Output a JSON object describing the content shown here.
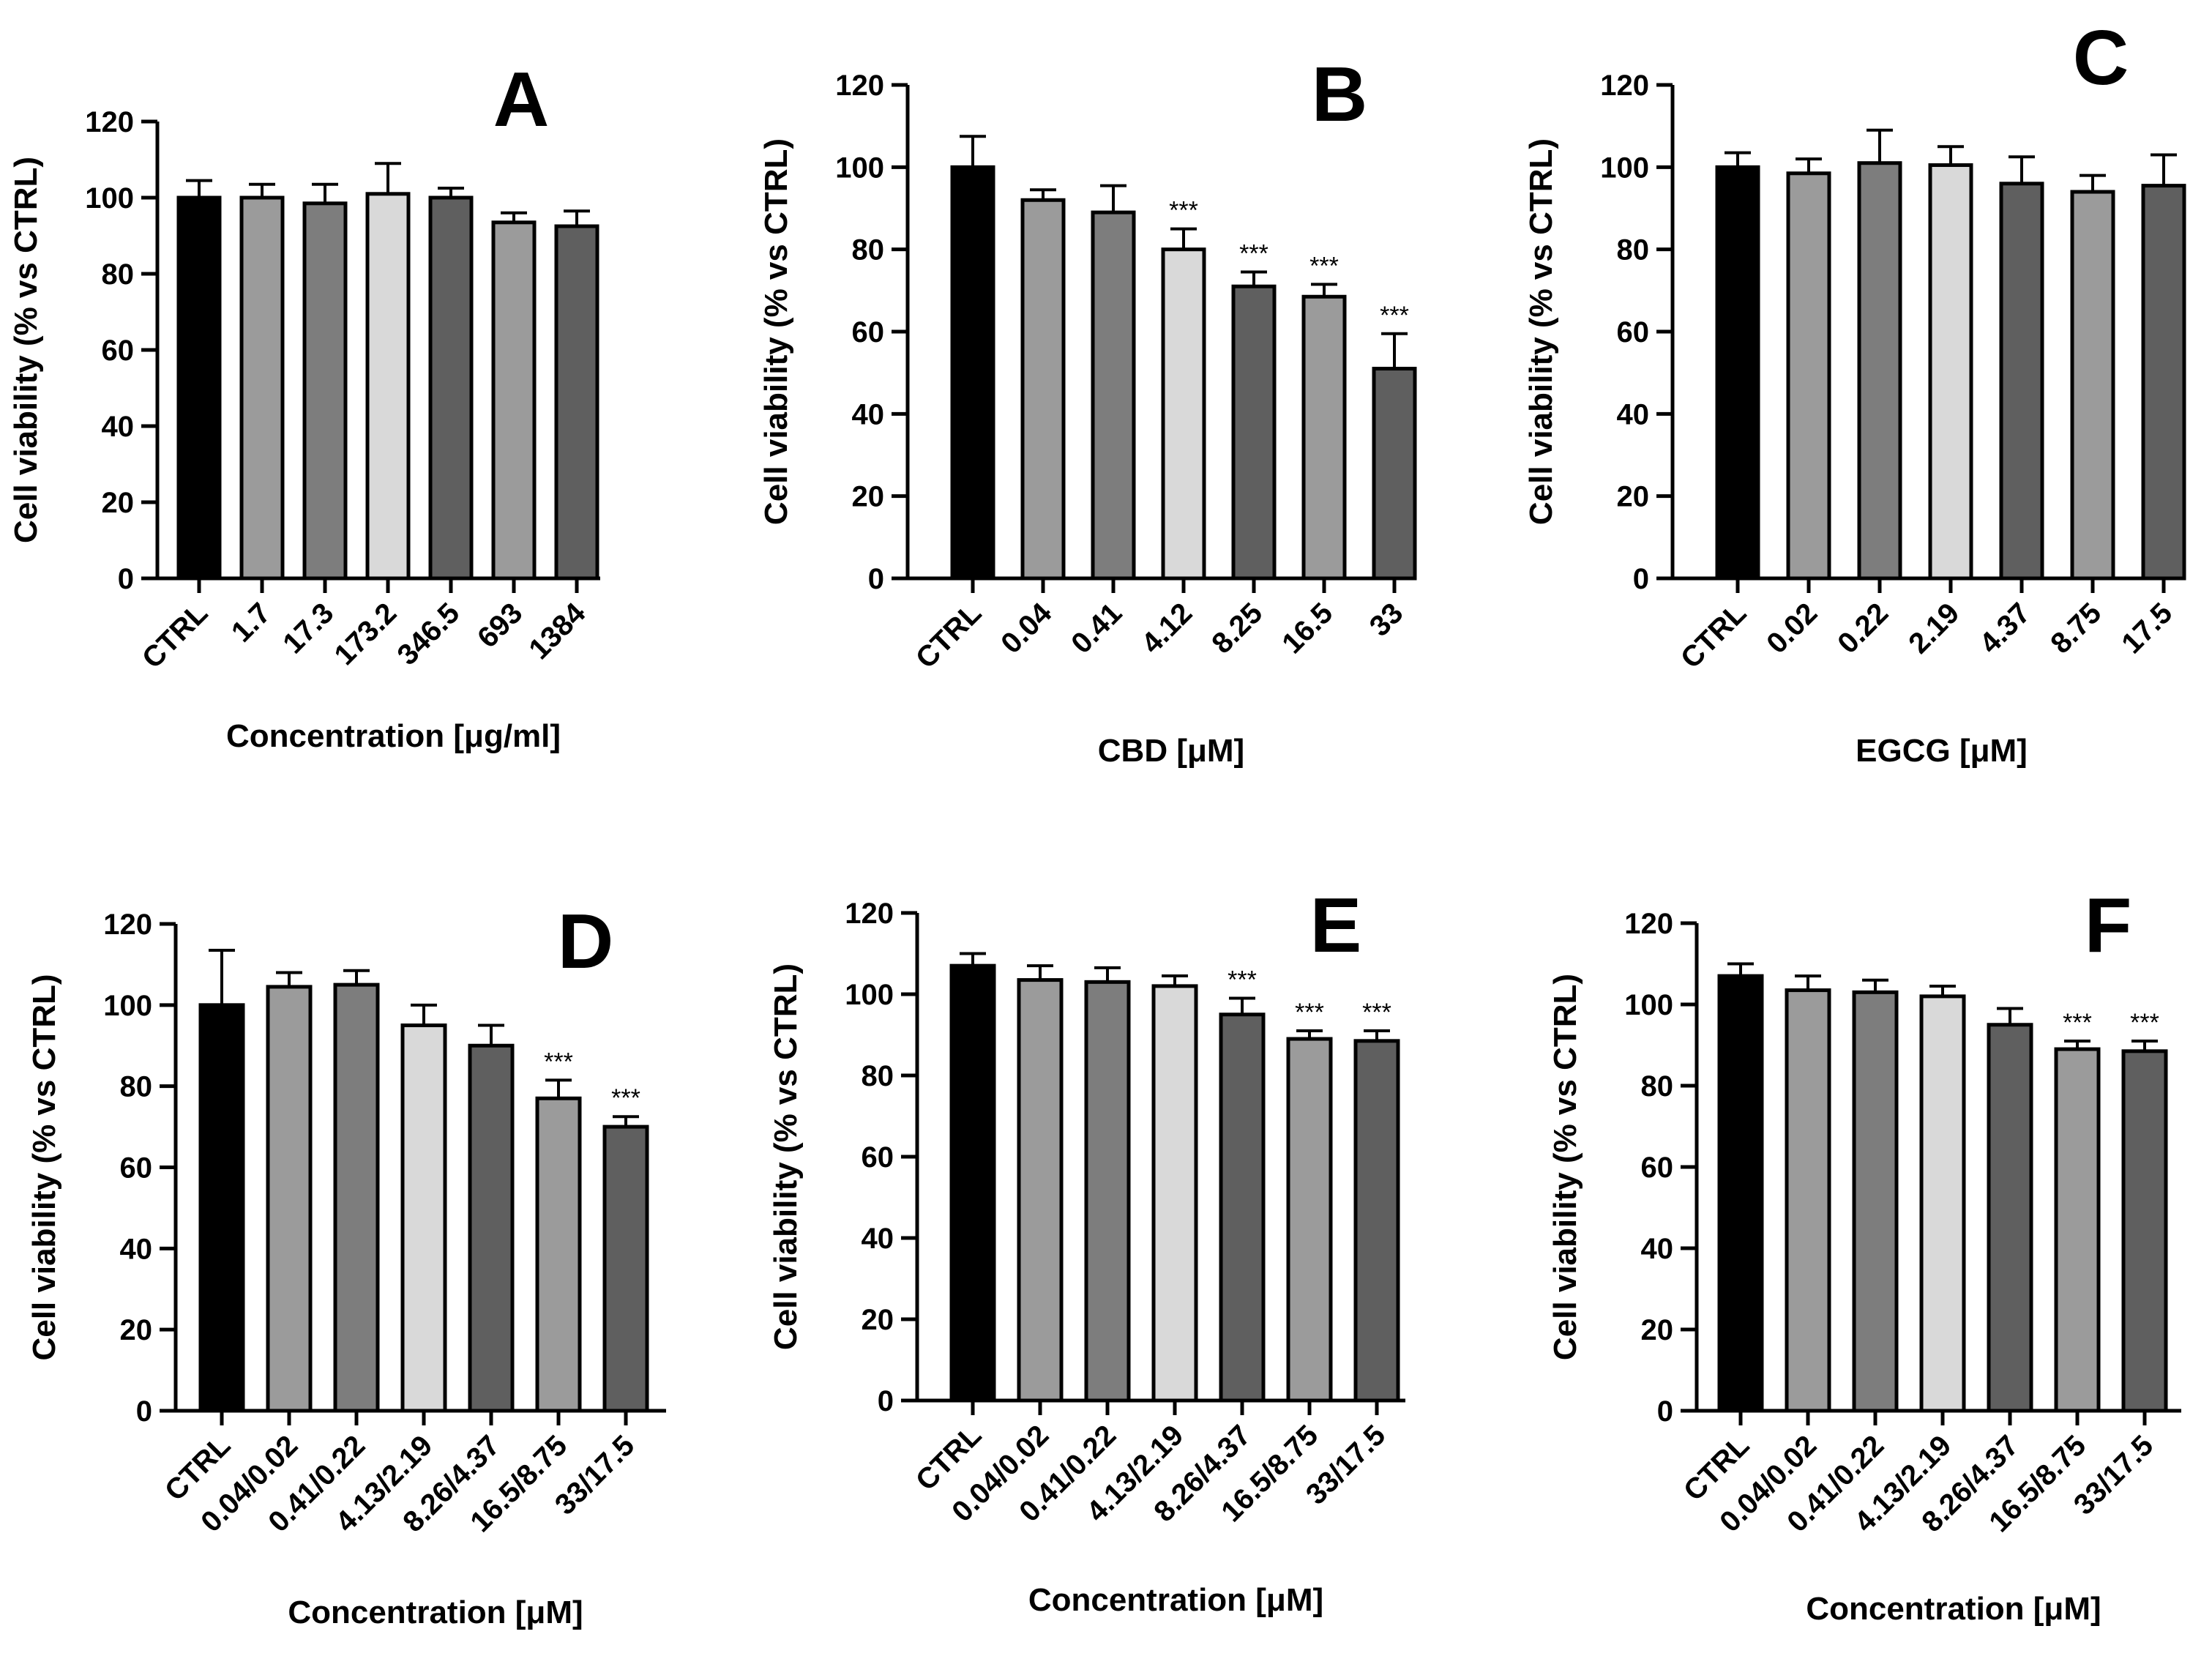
{
  "chart_data": [
    {
      "panel": "A",
      "type": "bar",
      "ylabel": "Cell viability (% vs CTRL)",
      "xlabel": "Concentration [μg/ml]",
      "ylim": [
        0,
        120
      ],
      "yticks": [
        0,
        20,
        40,
        60,
        80,
        100,
        120
      ],
      "categories": [
        "CTRL",
        "1.7",
        "17.3",
        "173.2",
        "346.5",
        "693",
        "1384"
      ],
      "values": [
        100,
        100,
        98.5,
        101,
        100,
        93.5,
        92.5
      ],
      "errors": [
        4.5,
        3.5,
        5,
        8,
        2.5,
        2.5,
        4
      ],
      "significance": [
        "",
        "",
        "",
        "",
        "",
        "",
        ""
      ],
      "colors": [
        "#000000",
        "#9b9b9b",
        "#7d7d7d",
        "#d9d9d9",
        "#5f5f5f",
        "#9b9b9b",
        "#5f5f5f"
      ],
      "grid": false
    },
    {
      "panel": "B",
      "type": "bar",
      "ylabel": "Cell viability (% vs CTRL)",
      "xlabel": "CBD [μM]",
      "ylim": [
        0,
        120
      ],
      "yticks": [
        0,
        20,
        40,
        60,
        80,
        100,
        120
      ],
      "categories": [
        "CTRL",
        "0.04",
        "0.41",
        "4.12",
        "8.25",
        "16.5",
        "33"
      ],
      "values": [
        100,
        92,
        89,
        80,
        71,
        68.5,
        51
      ],
      "errors": [
        7.5,
        2.5,
        6.5,
        5,
        3.5,
        3,
        8.5
      ],
      "significance": [
        "",
        "",
        "",
        "***",
        "***",
        "***",
        "***"
      ],
      "colors": [
        "#000000",
        "#9b9b9b",
        "#7d7d7d",
        "#d9d9d9",
        "#5f5f5f",
        "#9b9b9b",
        "#5f5f5f"
      ],
      "grid": false
    },
    {
      "panel": "C",
      "type": "bar",
      "ylabel": "Cell viability (% vs CTRL)",
      "xlabel": "EGCG [μM]",
      "ylim": [
        0,
        120
      ],
      "yticks": [
        0,
        20,
        40,
        60,
        80,
        100,
        120
      ],
      "categories": [
        "CTRL",
        "0.02",
        "0.22",
        "2.19",
        "4.37",
        "8.75",
        "17.5"
      ],
      "values": [
        100,
        98.5,
        101,
        100.5,
        96,
        94,
        95.5
      ],
      "errors": [
        3.5,
        3.5,
        8,
        4.5,
        6.5,
        4,
        7.5
      ],
      "significance": [
        "",
        "",
        "",
        "",
        "",
        "",
        ""
      ],
      "colors": [
        "#000000",
        "#9b9b9b",
        "#7d7d7d",
        "#d9d9d9",
        "#5f5f5f",
        "#9b9b9b",
        "#5f5f5f"
      ],
      "grid": false
    },
    {
      "panel": "D",
      "type": "bar",
      "ylabel": "Cell viability (% vs CTRL)",
      "xlabel": "Concentration [μM]",
      "ylim": [
        0,
        120
      ],
      "yticks": [
        0,
        20,
        40,
        60,
        80,
        100,
        120
      ],
      "categories": [
        "CTRL",
        "0.04/0.02",
        "0.41/0.22",
        "4.13/2.19",
        "8.26/4.37",
        "16.5/8.75",
        "33/17.5"
      ],
      "values": [
        100,
        104.5,
        105,
        95,
        90,
        77,
        70
      ],
      "errors": [
        13.5,
        3.5,
        3.5,
        5,
        5,
        4.5,
        2.5
      ],
      "significance": [
        "",
        "",
        "",
        "",
        "",
        "***",
        "***"
      ],
      "colors": [
        "#000000",
        "#9b9b9b",
        "#7d7d7d",
        "#d9d9d9",
        "#5f5f5f",
        "#9b9b9b",
        "#5f5f5f"
      ],
      "grid": false
    },
    {
      "panel": "E",
      "type": "bar",
      "ylabel": "Cell viability (% vs CTRL)",
      "xlabel": "Concentration [μM]",
      "ylim": [
        0,
        120
      ],
      "yticks": [
        0,
        20,
        40,
        60,
        80,
        100,
        120
      ],
      "categories": [
        "CTRL",
        "0.04/0.02",
        "0.41/0.22",
        "4.13/2.19",
        "8.26/4.37",
        "16.5/8.75",
        "33/17.5"
      ],
      "values": [
        107,
        103.5,
        103,
        102,
        95,
        89,
        88.5
      ],
      "errors": [
        3,
        3.5,
        3.5,
        2.5,
        4,
        2,
        2.5
      ],
      "significance": [
        "",
        "",
        "",
        "",
        "***",
        "***",
        "***"
      ],
      "colors": [
        "#000000",
        "#9b9b9b",
        "#7d7d7d",
        "#d9d9d9",
        "#5f5f5f",
        "#9b9b9b",
        "#5f5f5f"
      ],
      "grid": false
    },
    {
      "panel": "F",
      "type": "bar",
      "ylabel": "Cell viability (% vs CTRL)",
      "xlabel": "Concentration [μM]",
      "ylim": [
        0,
        120
      ],
      "yticks": [
        0,
        20,
        40,
        60,
        80,
        100,
        120
      ],
      "categories": [
        "CTRL",
        "0.04/0.02",
        "0.41/0.22",
        "4.13/2.19",
        "8.26/4.37",
        "16.5/8.75",
        "33/17.5"
      ],
      "values": [
        107,
        103.5,
        103,
        102,
        95,
        89,
        88.5
      ],
      "errors": [
        3,
        3.5,
        3,
        2.5,
        4,
        2,
        2.5
      ],
      "significance": [
        "",
        "",
        "",
        "",
        "",
        "***",
        "***"
      ],
      "colors": [
        "#000000",
        "#9b9b9b",
        "#7d7d7d",
        "#d9d9d9",
        "#5f5f5f",
        "#9b9b9b",
        "#5f5f5f"
      ],
      "grid": false
    }
  ]
}
